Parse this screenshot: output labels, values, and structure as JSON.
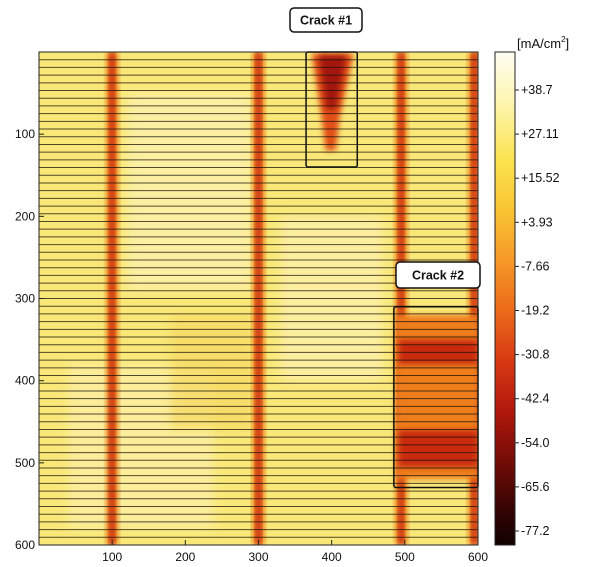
{
  "chart_data": {
    "type": "heatmap",
    "xlim": [
      0,
      600
    ],
    "ylim": [
      0,
      600
    ],
    "y_reversed": true,
    "x_ticks": [
      "100",
      "200",
      "300",
      "400",
      "500",
      "600"
    ],
    "y_ticks": [
      "100",
      "200",
      "300",
      "400",
      "500",
      "600"
    ],
    "grid": "horizontal scan lines",
    "colorbar": {
      "unit_prefix": "[mA/cm",
      "unit_power": "2",
      "unit_suffix": "]",
      "labels": [
        "+38.7",
        "+27.11",
        "+15.52",
        "+3.93",
        "-7.66",
        "-19.2",
        "-30.8",
        "-42.4",
        "-54.0",
        "-65.6",
        "-77.2"
      ],
      "values": [
        38.7,
        27.11,
        15.52,
        3.93,
        -7.66,
        -19.2,
        -30.8,
        -42.4,
        -54.0,
        -65.6,
        -77.2
      ],
      "colors": [
        "#fefdf0",
        "#fdf5b0",
        "#fbe65a",
        "#f9cb3a",
        "#f5a52c",
        "#ee7e1e",
        "#e14f15",
        "#c5200e",
        "#8f110a",
        "#4f0805",
        "#1c0302"
      ]
    },
    "vertical_bands_x": [
      100,
      300,
      495,
      595
    ],
    "annotations": [
      {
        "label": "Crack #1",
        "x_range": [
          365,
          435
        ],
        "y_range": [
          0,
          140
        ]
      },
      {
        "label": "Crack #2",
        "x_range": [
          485,
          600
        ],
        "y_range": [
          310,
          530
        ]
      }
    ]
  }
}
